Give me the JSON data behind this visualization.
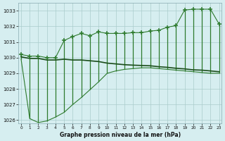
{
  "xlabel": "Graphe pression niveau de la mer (hPa)",
  "ylabel": "",
  "hours": [
    0,
    1,
    2,
    3,
    4,
    5,
    6,
    7,
    8,
    9,
    10,
    11,
    12,
    13,
    14,
    15,
    16,
    17,
    18,
    19,
    20,
    21,
    22,
    23
  ],
  "pressure_max": [
    1030.2,
    1030.1,
    1030.1,
    1030.0,
    1030.0,
    1031.1,
    1031.35,
    1031.55,
    1031.4,
    1031.65,
    1031.55,
    1031.55,
    1031.55,
    1031.6,
    1031.6,
    1031.7,
    1031.75,
    1031.95,
    1032.05,
    1033.05,
    1033.1,
    1033.1,
    1033.1,
    1032.15
  ],
  "pressure_mean": [
    1030.05,
    1029.95,
    1029.95,
    1029.85,
    1029.85,
    1029.9,
    1029.85,
    1029.85,
    1029.8,
    1029.75,
    1029.65,
    1029.6,
    1029.55,
    1029.52,
    1029.5,
    1029.48,
    1029.42,
    1029.38,
    1029.32,
    1029.28,
    1029.22,
    1029.2,
    1029.15,
    1029.1
  ],
  "pressure_min": [
    1029.9,
    1026.1,
    1025.85,
    1025.95,
    1026.2,
    1026.5,
    1027.0,
    1027.45,
    1027.95,
    1028.45,
    1029.0,
    1029.15,
    1029.25,
    1029.3,
    1029.35,
    1029.35,
    1029.3,
    1029.25,
    1029.2,
    1029.15,
    1029.1,
    1029.05,
    1029.0,
    1029.0
  ],
  "ylim": [
    1025.8,
    1033.5
  ],
  "yticks": [
    1026,
    1027,
    1028,
    1029,
    1030,
    1031,
    1032,
    1033
  ],
  "bg_color": "#d6eef0",
  "grid_color": "#aacccc",
  "line_color_light": "#2d7a2d",
  "line_color_dark": "#1a4d1a",
  "line_color_mid": "#2d7a2d"
}
